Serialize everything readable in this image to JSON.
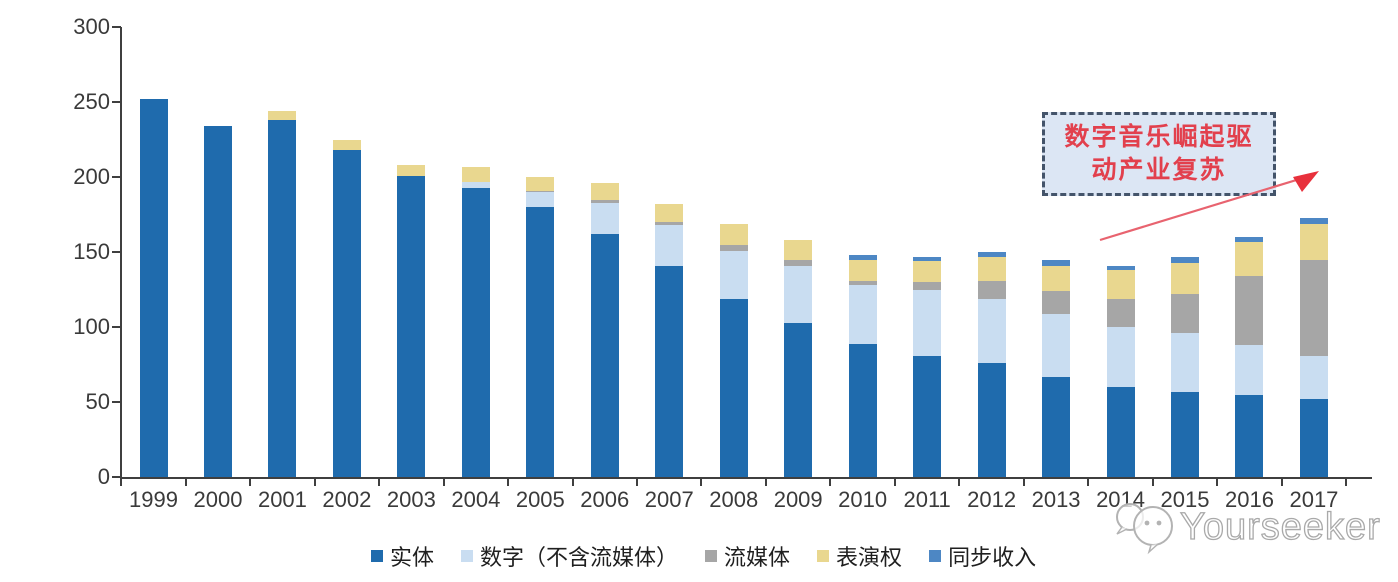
{
  "chart_data": {
    "type": "bar",
    "stacked": true,
    "title": "",
    "xlabel": "",
    "ylabel": "",
    "ylim": [
      0,
      300
    ],
    "yticks": [
      0,
      50,
      100,
      150,
      200,
      250,
      300
    ],
    "grid": false,
    "legend_position": "bottom",
    "categories": [
      "1999",
      "2000",
      "2001",
      "2002",
      "2003",
      "2004",
      "2005",
      "2006",
      "2007",
      "2008",
      "2009",
      "2010",
      "2011",
      "2012",
      "2013",
      "2014",
      "2015",
      "2016",
      "2017"
    ],
    "series": [
      {
        "key": "physical",
        "name": "实体",
        "color": "#1F6BAD",
        "values": [
          252,
          234,
          238,
          218,
          201,
          193,
          180,
          162,
          141,
          119,
          103,
          89,
          81,
          76,
          67,
          60,
          57,
          55,
          52
        ]
      },
      {
        "key": "digital",
        "name": "数字（不含流媒体）",
        "color": "#C9DDF1",
        "values": [
          0,
          0,
          0,
          0,
          0,
          4,
          10,
          21,
          27,
          32,
          38,
          39,
          44,
          43,
          42,
          40,
          39,
          33,
          29
        ]
      },
      {
        "key": "streaming",
        "name": "流媒体",
        "color": "#A6A6A6",
        "values": [
          0,
          0,
          0,
          0,
          0,
          0,
          1,
          2,
          2,
          4,
          4,
          3,
          5,
          12,
          15,
          19,
          26,
          46,
          64
        ]
      },
      {
        "key": "performance",
        "name": "表演权",
        "color": "#E9D78F",
        "values": [
          0,
          0,
          6,
          7,
          7,
          10,
          9,
          11,
          12,
          14,
          13,
          14,
          14,
          16,
          17,
          19,
          21,
          23,
          24
        ]
      },
      {
        "key": "sync",
        "name": "同步收入",
        "color": "#4D87C4",
        "values": [
          0,
          0,
          0,
          0,
          0,
          0,
          0,
          0,
          0,
          0,
          0,
          3,
          3,
          3,
          4,
          3,
          4,
          3,
          4
        ]
      }
    ]
  },
  "annotation": {
    "line1": "数字音乐崛起驱",
    "line2": "动产业复苏",
    "text_color": "#E2404D",
    "border_color": "#44546A",
    "fill_color": "#DCE6F4",
    "arrow_color": "#E8636F"
  },
  "watermark": {
    "text": "Yourseeker"
  }
}
